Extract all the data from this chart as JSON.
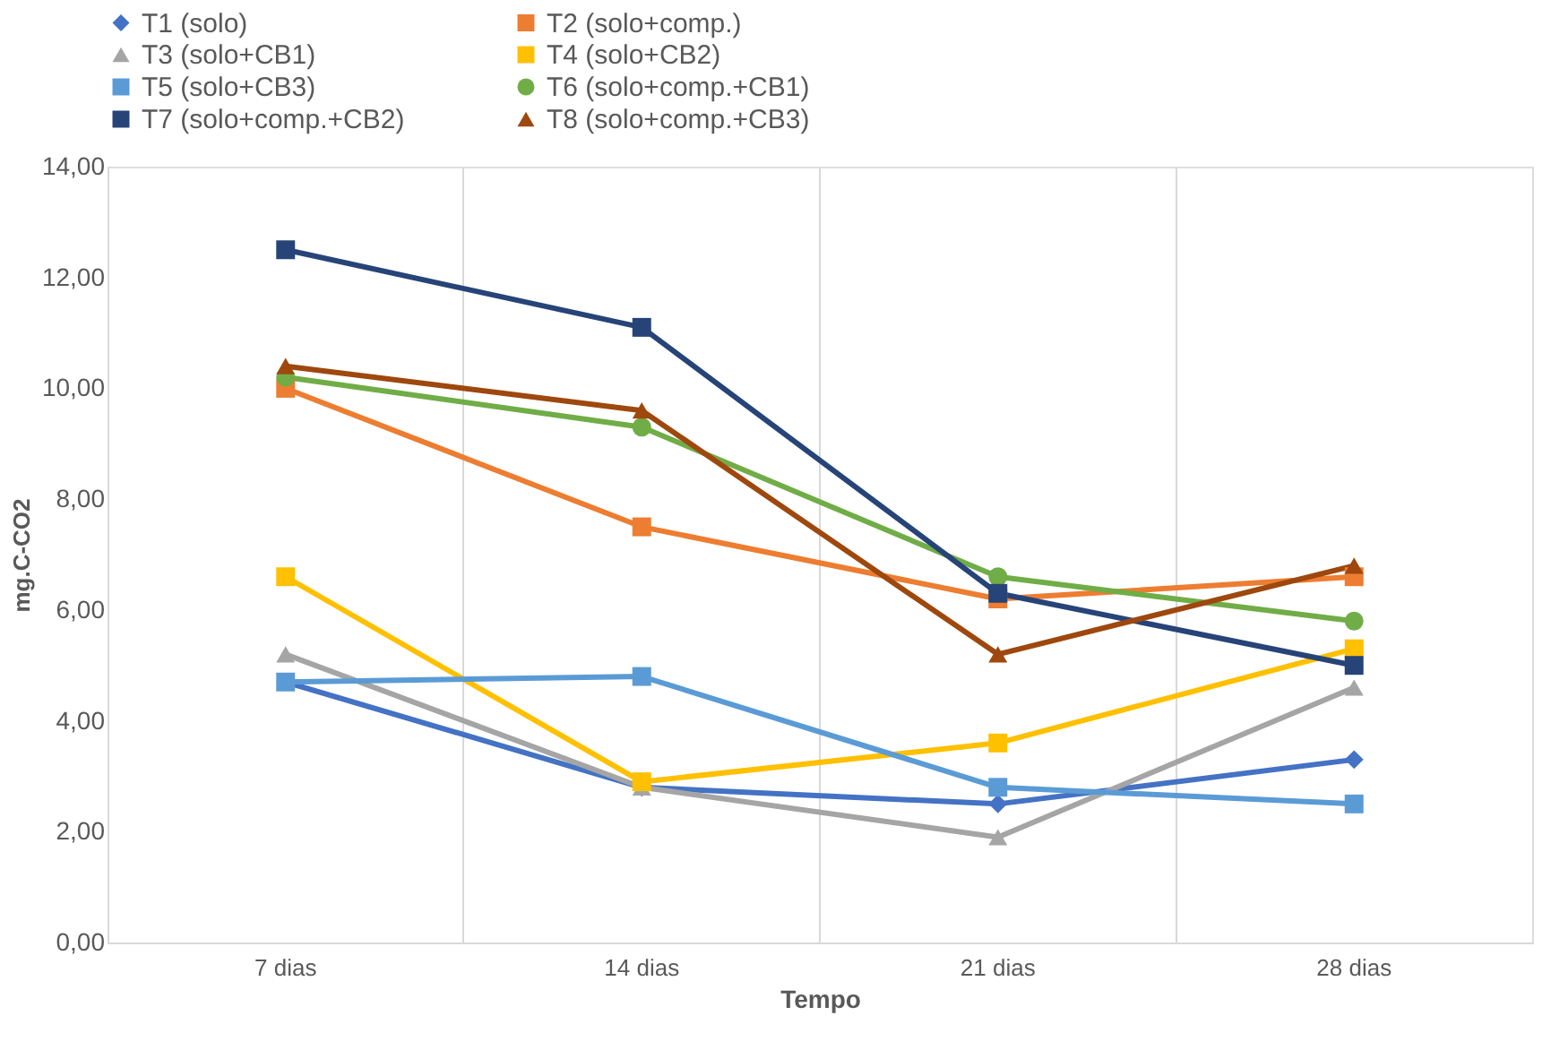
{
  "chart_data": {
    "type": "line",
    "xlabel": "Tempo",
    "ylabel": "mg.C-CO2",
    "categories": [
      "7 dias",
      "14 dias",
      "21 dias",
      "28 dias"
    ],
    "ylim": [
      0,
      14
    ],
    "yticks": [
      {
        "value": 0,
        "label": "0,00"
      },
      {
        "value": 2,
        "label": "2,00"
      },
      {
        "value": 4,
        "label": "4,00"
      },
      {
        "value": 6,
        "label": "6,00"
      },
      {
        "value": 8,
        "label": "8,00"
      },
      {
        "value": 10,
        "label": "10,00"
      },
      {
        "value": 12,
        "label": "12,00"
      },
      {
        "value": 14,
        "label": "14,00"
      }
    ],
    "grid": "x",
    "legend": "top",
    "line_style": "solid",
    "series": [
      {
        "name": "T1 (solo)",
        "color": "#4472c4",
        "marker": "diamond",
        "values": [
          4.7,
          2.8,
          2.5,
          3.3
        ]
      },
      {
        "name": "T2 (solo+comp.)",
        "color": "#ed7d31",
        "marker": "square",
        "values": [
          10.0,
          7.5,
          6.2,
          6.6
        ]
      },
      {
        "name": "T3 (solo+CB1)",
        "color": "#a5a5a5",
        "marker": "triangle",
        "values": [
          5.2,
          2.8,
          1.9,
          4.6
        ]
      },
      {
        "name": "T4 (solo+CB2)",
        "color": "#ffc000",
        "marker": "square",
        "values": [
          6.6,
          2.9,
          3.6,
          5.3
        ]
      },
      {
        "name": "T5 (solo+CB3)",
        "color": "#5b9bd5",
        "marker": "square",
        "values": [
          4.7,
          4.8,
          2.8,
          2.5
        ]
      },
      {
        "name": "T6 (solo+comp.+CB1)",
        "color": "#70ad47",
        "marker": "circle",
        "values": [
          10.2,
          9.3,
          6.6,
          5.8
        ]
      },
      {
        "name": "T7 (solo+comp.+CB2)",
        "color": "#264478",
        "marker": "square",
        "values": [
          12.5,
          11.1,
          6.3,
          5.0
        ]
      },
      {
        "name": "T8 (solo+comp.+CB3)",
        "color": "#9e480e",
        "marker": "triangle",
        "values": [
          10.4,
          9.6,
          5.2,
          6.8
        ]
      }
    ]
  }
}
